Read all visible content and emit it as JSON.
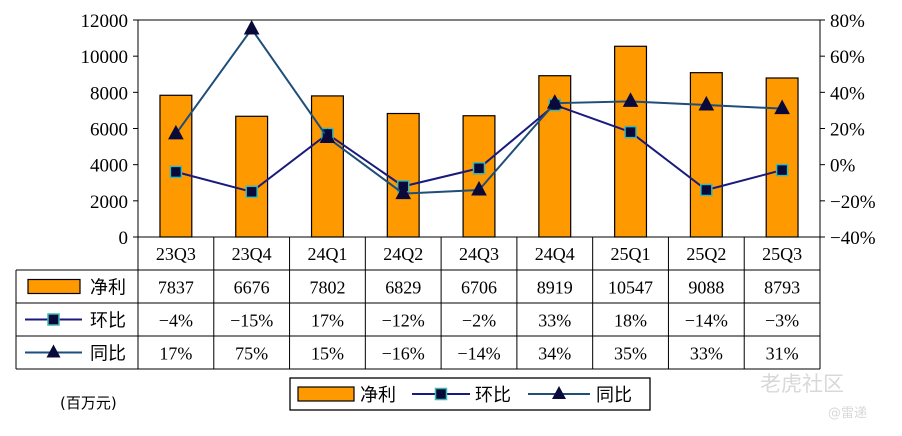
{
  "chart_data": {
    "type": "bar",
    "categories": [
      "23Q3",
      "23Q4",
      "24Q1",
      "24Q2",
      "24Q3",
      "24Q4",
      "25Q1",
      "25Q2",
      "25Q3"
    ],
    "series": [
      {
        "name": "净利",
        "type": "bar",
        "axis": "left",
        "color": "#FF9900",
        "values": [
          7837,
          6676,
          7802,
          6829,
          6706,
          8919,
          10547,
          9088,
          8793
        ]
      },
      {
        "name": "环比",
        "type": "line",
        "axis": "right",
        "color": "#1A1A7E",
        "marker": "square",
        "values": [
          -4,
          -15,
          17,
          -12,
          -2,
          33,
          18,
          -14,
          -3
        ]
      },
      {
        "name": "同比",
        "type": "line",
        "axis": "right",
        "color": "#1E4E79",
        "marker": "triangle",
        "values": [
          17,
          75,
          15,
          -16,
          -14,
          34,
          35,
          33,
          31
        ]
      }
    ],
    "y_left": {
      "min": 0,
      "max": 12000,
      "ticks": [
        "0",
        "2000",
        "4000",
        "6000",
        "8000",
        "10000",
        "12000"
      ]
    },
    "y_right": {
      "min": -40,
      "max": 80,
      "ticks": [
        "-40%",
        "-20%",
        "0%",
        "20%",
        "40%",
        "60%",
        "80%"
      ]
    },
    "table": {
      "rows": [
        {
          "label": "净利",
          "cells": [
            "7837",
            "6676",
            "7802",
            "6829",
            "6706",
            "8919",
            "10547",
            "9088",
            "8793"
          ]
        },
        {
          "label": "环比",
          "cells": [
            "-4%",
            "-15%",
            "17%",
            "-12%",
            "-2%",
            "33%",
            "18%",
            "-14%",
            "-3%"
          ]
        },
        {
          "label": "同比",
          "cells": [
            "17%",
            "75%",
            "15%",
            "-16%",
            "-14%",
            "34%",
            "35%",
            "33%",
            "31%"
          ]
        }
      ]
    },
    "legend": {
      "position": "bottom",
      "items": [
        "净利",
        "环比",
        "同比"
      ]
    },
    "unit_label": "(百万元)"
  },
  "watermark": {
    "brand": "老虎社区",
    "author": "@雷递"
  }
}
